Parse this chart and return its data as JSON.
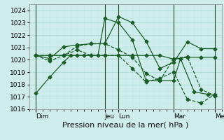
{
  "xlabel": "Pression niveau de la mer( hPa )",
  "bg_color": "#ceecea",
  "grid_color_major": "#aed8d4",
  "grid_color_minor": "#c4e8e4",
  "line_color": "#1a5c28",
  "ylim": [
    1016,
    1024.5
  ],
  "ylim_display": [
    1016,
    1024
  ],
  "yticks": [
    1016,
    1017,
    1018,
    1019,
    1020,
    1021,
    1022,
    1023,
    1024
  ],
  "xlim": [
    0,
    14.0
  ],
  "day_positions": [
    0.5,
    5.5,
    6.5,
    10.5,
    13.5
  ],
  "day_labels": [
    "Dim",
    "Jeu",
    "Lun",
    "Mar",
    "Mer"
  ],
  "vlines_x": [
    0.5,
    5.5,
    6.5,
    10.5,
    13.5
  ],
  "lines": [
    {
      "x": [
        0.5,
        1.5,
        2.5,
        3.0,
        4.0,
        5.0,
        5.5,
        6.5,
        7.5,
        8.5,
        9.5,
        10.5,
        11.0,
        12.0,
        13.0,
        13.5
      ],
      "y": [
        1017.3,
        1018.6,
        1019.8,
        1020.35,
        1020.35,
        1020.35,
        1023.35,
        1023.0,
        1021.6,
        1018.3,
        1018.3,
        1018.3,
        1020.1,
        1017.4,
        1017.2,
        1017.1
      ],
      "style": "-",
      "marker": "D",
      "markersize": 2.5
    },
    {
      "x": [
        0.5,
        1.5,
        2.5,
        3.5,
        4.5,
        5.5,
        6.5,
        7.5,
        8.5,
        9.5,
        10.5,
        11.5,
        12.5,
        13.5
      ],
      "y": [
        1020.35,
        1020.35,
        1020.35,
        1020.35,
        1020.35,
        1020.35,
        1020.35,
        1020.35,
        1020.35,
        1020.35,
        1020.05,
        1020.2,
        1020.2,
        1020.2
      ],
      "style": "-",
      "marker": "D",
      "markersize": 2.5
    },
    {
      "x": [
        0.5,
        1.5,
        2.5,
        3.5,
        4.5,
        5.5,
        6.5,
        7.5,
        8.5,
        9.5,
        10.5,
        11.5,
        12.5,
        13.5
      ],
      "y": [
        1020.35,
        1020.1,
        1021.05,
        1021.2,
        1021.3,
        1021.3,
        1023.5,
        1023.0,
        1021.5,
        1019.3,
        1019.8,
        1021.45,
        1020.9,
        1020.9
      ],
      "style": "-",
      "marker": "D",
      "markersize": 2.5
    },
    {
      "x": [
        0.5,
        1.5,
        2.5,
        3.5,
        4.5,
        5.5,
        6.5,
        7.5,
        8.5,
        9.5,
        10.5,
        11.5,
        12.5,
        13.5
      ],
      "y": [
        1020.35,
        1020.35,
        1020.35,
        1021.1,
        1021.3,
        1021.3,
        1020.8,
        1020.2,
        1018.9,
        1018.3,
        1020.1,
        1020.25,
        1017.6,
        1017.1
      ],
      "style": "--",
      "marker": "D",
      "markersize": 2.5
    },
    {
      "x": [
        0.5,
        1.5,
        2.5,
        3.5,
        4.5,
        5.5,
        6.5,
        7.5,
        8.5,
        9.5,
        10.5,
        11.5,
        12.5,
        13.5
      ],
      "y": [
        1020.35,
        1019.9,
        1020.35,
        1020.8,
        1020.35,
        1020.35,
        1020.35,
        1019.3,
        1018.2,
        1018.5,
        1019.0,
        1016.8,
        1016.5,
        1017.2
      ],
      "style": "--",
      "marker": "D",
      "markersize": 2.5
    }
  ],
  "xlabel_fontsize": 8,
  "tick_fontsize": 6.5
}
